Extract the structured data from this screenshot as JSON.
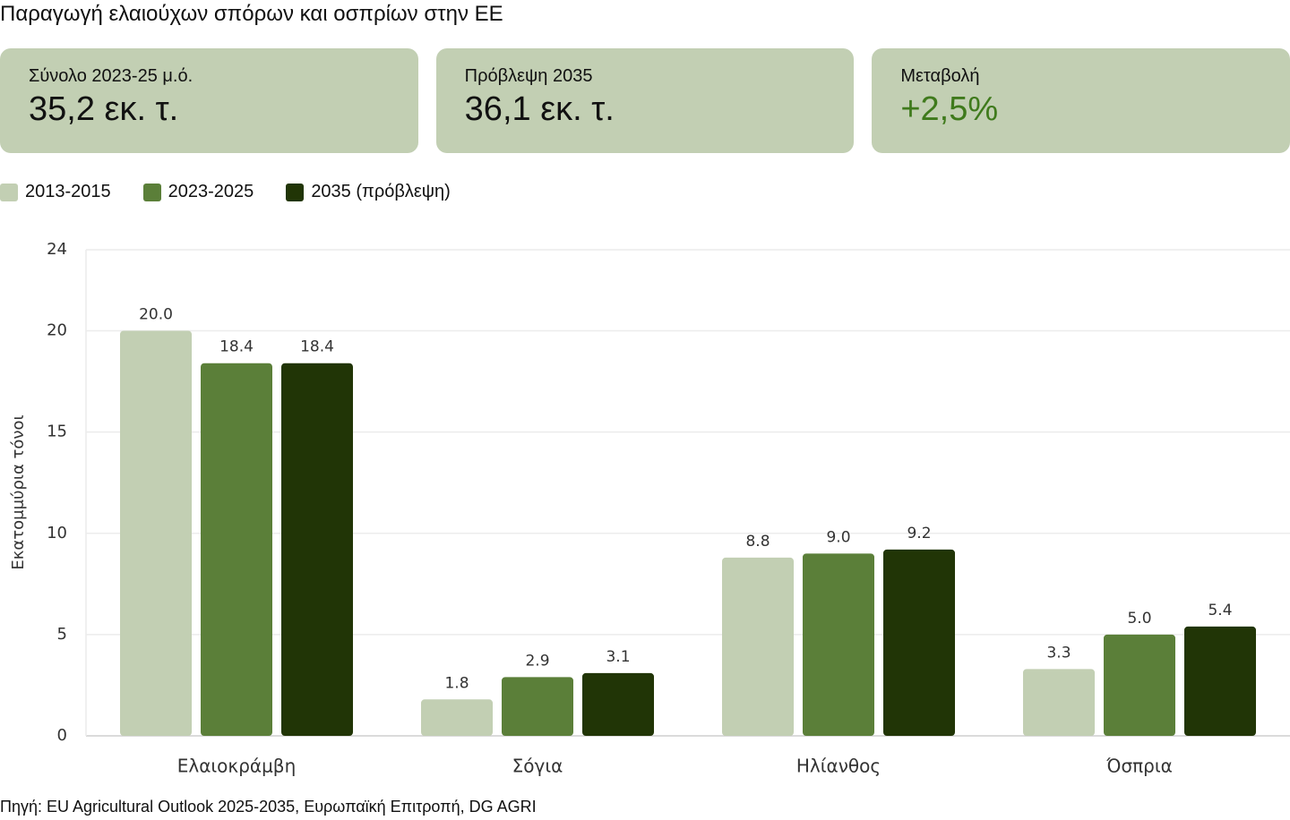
{
  "title": "Παραγωγή ελαιούχων σπόρων και οσπρίων στην ΕΕ",
  "cards": [
    {
      "label": "Σύνολο 2023-25 μ.ό.",
      "value": "35,2 εκ. τ."
    },
    {
      "label": "Πρόβλεψη 2035",
      "value": "36,1 εκ. τ."
    },
    {
      "label": "Μεταβολή",
      "value": "+2,5%",
      "color": "#3f7a1c"
    }
  ],
  "chart_data": {
    "type": "bar",
    "y_label": "Εκατομμύρια τόνοι",
    "categories": [
      "Ελαιοκράμβη",
      "Σόγια",
      "Ηλίανθος",
      "Όσπρια"
    ],
    "series": [
      {
        "name": "2013-2015",
        "color": "#c2cfb3",
        "values": [
          20.0,
          1.8,
          8.8,
          3.3
        ],
        "value_labels": [
          "20.0",
          "1.8",
          "8.8",
          "3.3"
        ]
      },
      {
        "name": "2023-2025",
        "color": "#5b7f39",
        "values": [
          18.4,
          2.9,
          9.0,
          5.0
        ],
        "value_labels": [
          "18.4",
          "2.9",
          "9.0",
          "5.0"
        ]
      },
      {
        "name": "2035 (πρόβλεψη)",
        "color": "#213506",
        "values": [
          18.4,
          3.1,
          9.2,
          5.4
        ],
        "value_labels": [
          "18.4",
          "3.1",
          "9.2",
          "5.4"
        ]
      }
    ],
    "ylim": [
      0,
      24
    ],
    "yticks": [
      0,
      5,
      10,
      15,
      20,
      24
    ],
    "grid": true,
    "legend": "top-left"
  },
  "source": "Πηγή: EU Agricultural Outlook 2025-2035, Ευρωπαϊκή Επιτροπή, DG AGRI"
}
